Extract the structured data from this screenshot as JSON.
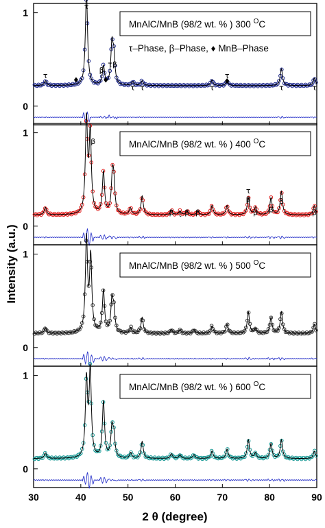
{
  "chart_data": {
    "type": "line",
    "xlabel": "2 θ (degree)",
    "ylabel": "Intensity (a.u.)",
    "xlim": [
      30,
      90
    ],
    "x_ticks": [
      30,
      40,
      50,
      60,
      70,
      80,
      90
    ],
    "x_tick_labels": [
      "30",
      "40",
      "50",
      "60",
      "70",
      "80",
      "90"
    ],
    "ylim": [
      -0.2,
      1.1
    ],
    "y_ticks": [
      0,
      1
    ],
    "y_tick_labels": [
      "0",
      "1"
    ],
    "panels": [
      {
        "title_main": "MnAlC/MnB (98/2 wt. % ) 300 ",
        "title_sup": "O",
        "title_end": "C",
        "legend_line": "τ–Phase,  β–Phase,  ♦ MnB–Phase",
        "colors": {
          "observed": "#1f2a8c",
          "calculated": "#000000",
          "difference": "#2b35c9"
        },
        "background": 0.22,
        "peaks": [
          [
            32.5,
            0.05
          ],
          [
            41.2,
            1.0
          ],
          [
            44.8,
            0.2
          ],
          [
            46.6,
            0.42
          ],
          [
            47.0,
            0.28
          ],
          [
            51.0,
            0.04
          ],
          [
            53.0,
            0.05
          ],
          [
            67.8,
            0.06
          ],
          [
            71.0,
            0.05
          ],
          [
            82.5,
            0.18
          ],
          [
            89.5,
            0.08
          ]
        ],
        "annotations": [
          {
            "x": 32.5,
            "y": 0.3,
            "label": "τ"
          },
          {
            "x": 39.0,
            "y": 0.25,
            "label": "♦"
          },
          {
            "x": 41.2,
            "y": 1.04,
            "label": "τ"
          },
          {
            "x": 44.4,
            "y": 0.36,
            "label": "β"
          },
          {
            "x": 45.3,
            "y": 0.25,
            "label": "♦"
          },
          {
            "x": 46.2,
            "y": 0.42,
            "label": "τ"
          },
          {
            "x": 47.2,
            "y": 0.42,
            "label": "β"
          },
          {
            "x": 51.0,
            "y": 0.17,
            "label": "τ"
          },
          {
            "x": 53.0,
            "y": 0.17,
            "label": "τ"
          },
          {
            "x": 67.8,
            "y": 0.17,
            "label": "τ"
          },
          {
            "x": 71.0,
            "y": 0.24,
            "label": "♦"
          },
          {
            "x": 71.0,
            "y": 0.3,
            "label": "τ"
          },
          {
            "x": 82.5,
            "y": 0.17,
            "label": "τ"
          },
          {
            "x": 89.5,
            "y": 0.17,
            "label": "τ"
          }
        ]
      },
      {
        "title_main": "MnAlC/MnB (98/2 wt. % ) 400 ",
        "title_sup": "O",
        "title_end": "C",
        "legend_line": "",
        "colors": {
          "observed": "#e0201f",
          "calculated": "#000000",
          "difference": "#2b35c9"
        },
        "background": 0.12,
        "peaks": [
          [
            32.5,
            0.08
          ],
          [
            41.2,
            1.0
          ],
          [
            42.0,
            0.85
          ],
          [
            44.8,
            0.45
          ],
          [
            46.7,
            0.38
          ],
          [
            47.0,
            0.28
          ],
          [
            50.5,
            0.07
          ],
          [
            53.0,
            0.2
          ],
          [
            59.2,
            0.05
          ],
          [
            61.0,
            0.04
          ],
          [
            62.5,
            0.04
          ],
          [
            64.8,
            0.04
          ],
          [
            67.8,
            0.1
          ],
          [
            71.0,
            0.1
          ],
          [
            75.5,
            0.18
          ],
          [
            77.0,
            0.08
          ],
          [
            80.3,
            0.18
          ],
          [
            82.5,
            0.25
          ],
          [
            89.5,
            0.1
          ]
        ],
        "annotations": [
          {
            "x": 42.6,
            "y": 0.88,
            "label": "β"
          },
          {
            "x": 59.2,
            "y": 0.12,
            "label": "β"
          },
          {
            "x": 61.0,
            "y": 0.1,
            "label": "τ"
          },
          {
            "x": 62.5,
            "y": 0.12,
            "label": "β"
          },
          {
            "x": 64.8,
            "y": 0.12,
            "label": "β"
          },
          {
            "x": 75.5,
            "y": 0.35,
            "label": "τ"
          },
          {
            "x": 75.5,
            "y": 0.26,
            "label": "β"
          },
          {
            "x": 77.0,
            "y": 0.12,
            "label": "β"
          },
          {
            "x": 80.3,
            "y": 0.15,
            "label": "β"
          },
          {
            "x": 82.5,
            "y": 0.24,
            "label": "β"
          },
          {
            "x": 89.5,
            "y": 0.12,
            "label": "β"
          }
        ]
      },
      {
        "title_main": "MnAlC/MnB (98/2 wt. % ) 500 ",
        "title_sup": "O",
        "title_end": "C",
        "legend_line": "",
        "colors": {
          "observed": "#3a3a3a",
          "calculated": "#000000",
          "difference": "#2b35c9"
        },
        "background": 0.15,
        "peaks": [
          [
            32.5,
            0.06
          ],
          [
            41.2,
            1.0
          ],
          [
            42.1,
            0.8
          ],
          [
            44.8,
            0.45
          ],
          [
            46.6,
            0.33
          ],
          [
            47.0,
            0.22
          ],
          [
            50.6,
            0.06
          ],
          [
            53.0,
            0.17
          ],
          [
            59.2,
            0.04
          ],
          [
            61.0,
            0.04
          ],
          [
            64.0,
            0.04
          ],
          [
            67.8,
            0.08
          ],
          [
            71.0,
            0.1
          ],
          [
            75.5,
            0.23
          ],
          [
            77.0,
            0.05
          ],
          [
            80.3,
            0.17
          ],
          [
            82.5,
            0.23
          ],
          [
            89.5,
            0.1
          ]
        ],
        "annotations": []
      },
      {
        "title_main": "MnAlC/MnB (98/2 wt. % ) 600 ",
        "title_sup": "O",
        "title_end": "C",
        "legend_line": "",
        "colors": {
          "observed": "#1a9a96",
          "calculated": "#000000",
          "difference": "#2b35c9"
        },
        "background": 0.11,
        "peaks": [
          [
            32.5,
            0.06
          ],
          [
            41.2,
            0.82
          ],
          [
            42.0,
            0.92
          ],
          [
            44.8,
            0.6
          ],
          [
            46.6,
            0.3
          ],
          [
            47.0,
            0.22
          ],
          [
            50.6,
            0.06
          ],
          [
            53.0,
            0.18
          ],
          [
            59.2,
            0.05
          ],
          [
            61.0,
            0.04
          ],
          [
            64.0,
            0.04
          ],
          [
            67.8,
            0.08
          ],
          [
            71.0,
            0.1
          ],
          [
            75.5,
            0.2
          ],
          [
            77.0,
            0.06
          ],
          [
            80.3,
            0.16
          ],
          [
            82.5,
            0.2
          ],
          [
            89.5,
            0.08
          ]
        ],
        "annotations": []
      }
    ]
  }
}
